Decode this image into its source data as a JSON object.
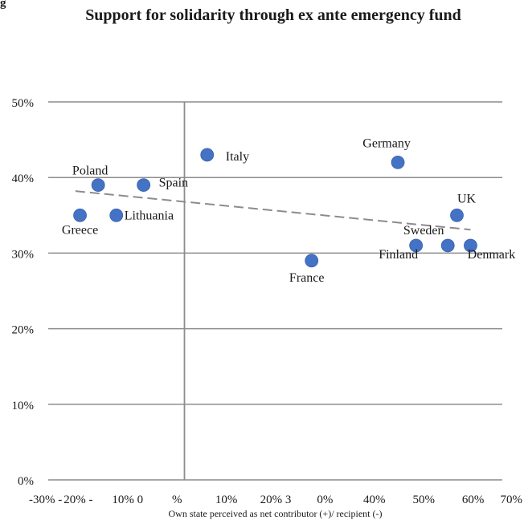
{
  "figure_mark": "g",
  "chart_data": {
    "type": "scatter",
    "title": "Support for solidarity through ex ante emergency fund",
    "xlabel": "Own state perceived as net contributor (+)/ recipient (-)",
    "ylabel": "",
    "xlim": [
      -0.3,
      0.7
    ],
    "ylim": [
      0,
      0.5
    ],
    "x_tick_labels": [
      "-30% -",
      "20% -",
      "10% 0",
      "%",
      "10%",
      "20% 3",
      "0%",
      "40%",
      "50%",
      "60%",
      "70%"
    ],
    "y_tick_labels": [
      "0%",
      "10%",
      "20%",
      "30%",
      "40%",
      "50%"
    ],
    "grid": "horizontal",
    "trendline": {
      "style": "dashed",
      "x": [
        -0.24,
        0.63
      ],
      "y": [
        0.382,
        0.331
      ]
    },
    "points": [
      {
        "name": "Greece",
        "x": -0.23,
        "y": 0.35
      },
      {
        "name": "Poland",
        "x": -0.19,
        "y": 0.39
      },
      {
        "name": "Lithuania",
        "x": -0.15,
        "y": 0.35
      },
      {
        "name": "Spain",
        "x": -0.09,
        "y": 0.39
      },
      {
        "name": "Italy",
        "x": 0.05,
        "y": 0.43
      },
      {
        "name": "France",
        "x": 0.28,
        "y": 0.29
      },
      {
        "name": "Germany",
        "x": 0.47,
        "y": 0.42
      },
      {
        "name": "Finland",
        "x": 0.51,
        "y": 0.31
      },
      {
        "name": "Sweden",
        "x": 0.58,
        "y": 0.31
      },
      {
        "name": "UK",
        "x": 0.6,
        "y": 0.35
      },
      {
        "name": "Denmark",
        "x": 0.63,
        "y": 0.31
      }
    ],
    "colors": {
      "marker": "#4472c4",
      "gridline": "#8c8c8c",
      "trendline": "#8c8c8c"
    }
  }
}
